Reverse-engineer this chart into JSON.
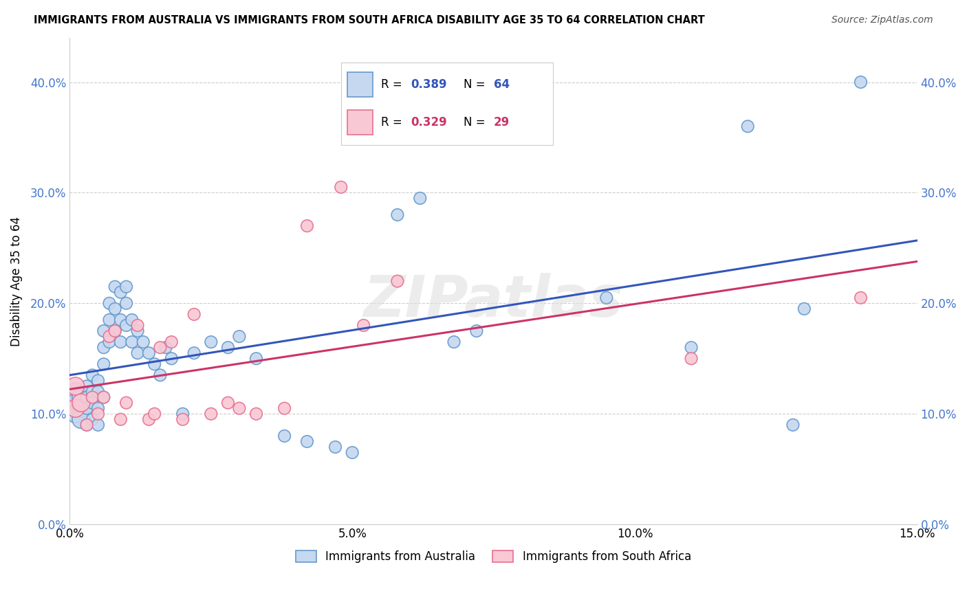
{
  "title": "IMMIGRANTS FROM AUSTRALIA VS IMMIGRANTS FROM SOUTH AFRICA DISABILITY AGE 35 TO 64 CORRELATION CHART",
  "source": "Source: ZipAtlas.com",
  "ylabel_label": "Disability Age 35 to 64",
  "xlim": [
    0.0,
    0.15
  ],
  "ylim": [
    0.0,
    0.44
  ],
  "yticks": [
    0.0,
    0.1,
    0.2,
    0.3,
    0.4
  ],
  "ytick_labels": [
    "0.0%",
    "10.0%",
    "20.0%",
    "30.0%",
    "40.0%"
  ],
  "xticks": [
    0.0,
    0.05,
    0.1,
    0.15
  ],
  "xtick_labels": [
    "0.0%",
    "5.0%",
    "10.0%",
    "15.0%"
  ],
  "australia_color": "#c5d8f0",
  "australia_edge": "#6699cc",
  "southafrica_color": "#f8c8d4",
  "southafrica_edge": "#e87090",
  "trendline_aus_color": "#3355bb",
  "trendline_sa_color": "#cc3366",
  "watermark": "ZIPatlas",
  "legend_label_australia": "Immigrants from Australia",
  "legend_label_southafrica": "Immigrants from South Africa",
  "legend_R_aus": "0.389",
  "legend_N_aus": "64",
  "legend_R_sa": "0.329",
  "legend_N_sa": "29",
  "legend_R_color_aus": "#3355bb",
  "legend_N_color_aus": "#3355bb",
  "legend_R_color_sa": "#cc3366",
  "legend_N_color_sa": "#cc3366",
  "australia_x": [
    0.001,
    0.001,
    0.001,
    0.002,
    0.002,
    0.002,
    0.003,
    0.003,
    0.003,
    0.003,
    0.004,
    0.004,
    0.004,
    0.004,
    0.005,
    0.005,
    0.005,
    0.005,
    0.006,
    0.006,
    0.006,
    0.006,
    0.007,
    0.007,
    0.007,
    0.008,
    0.008,
    0.008,
    0.009,
    0.009,
    0.009,
    0.01,
    0.01,
    0.01,
    0.011,
    0.011,
    0.012,
    0.012,
    0.013,
    0.014,
    0.015,
    0.016,
    0.017,
    0.018,
    0.02,
    0.022,
    0.025,
    0.028,
    0.03,
    0.033,
    0.038,
    0.042,
    0.047,
    0.05,
    0.058,
    0.062,
    0.068,
    0.072,
    0.095,
    0.11,
    0.12,
    0.128,
    0.13,
    0.14
  ],
  "australia_y": [
    0.12,
    0.11,
    0.1,
    0.115,
    0.105,
    0.095,
    0.125,
    0.115,
    0.105,
    0.09,
    0.135,
    0.12,
    0.11,
    0.095,
    0.13,
    0.12,
    0.105,
    0.09,
    0.175,
    0.16,
    0.145,
    0.115,
    0.2,
    0.185,
    0.165,
    0.215,
    0.195,
    0.175,
    0.21,
    0.185,
    0.165,
    0.215,
    0.2,
    0.18,
    0.185,
    0.165,
    0.175,
    0.155,
    0.165,
    0.155,
    0.145,
    0.135,
    0.16,
    0.15,
    0.1,
    0.155,
    0.165,
    0.16,
    0.17,
    0.15,
    0.08,
    0.075,
    0.07,
    0.065,
    0.28,
    0.295,
    0.165,
    0.175,
    0.205,
    0.16,
    0.36,
    0.09,
    0.195,
    0.4
  ],
  "southafrica_x": [
    0.001,
    0.001,
    0.002,
    0.003,
    0.004,
    0.005,
    0.006,
    0.007,
    0.008,
    0.009,
    0.01,
    0.012,
    0.014,
    0.015,
    0.016,
    0.018,
    0.02,
    0.022,
    0.025,
    0.028,
    0.03,
    0.033,
    0.038,
    0.042,
    0.048,
    0.052,
    0.058,
    0.11,
    0.14
  ],
  "southafrica_y": [
    0.125,
    0.105,
    0.11,
    0.09,
    0.115,
    0.1,
    0.115,
    0.17,
    0.175,
    0.095,
    0.11,
    0.18,
    0.095,
    0.1,
    0.16,
    0.165,
    0.095,
    0.19,
    0.1,
    0.11,
    0.105,
    0.1,
    0.105,
    0.27,
    0.305,
    0.18,
    0.22,
    0.15,
    0.205
  ]
}
